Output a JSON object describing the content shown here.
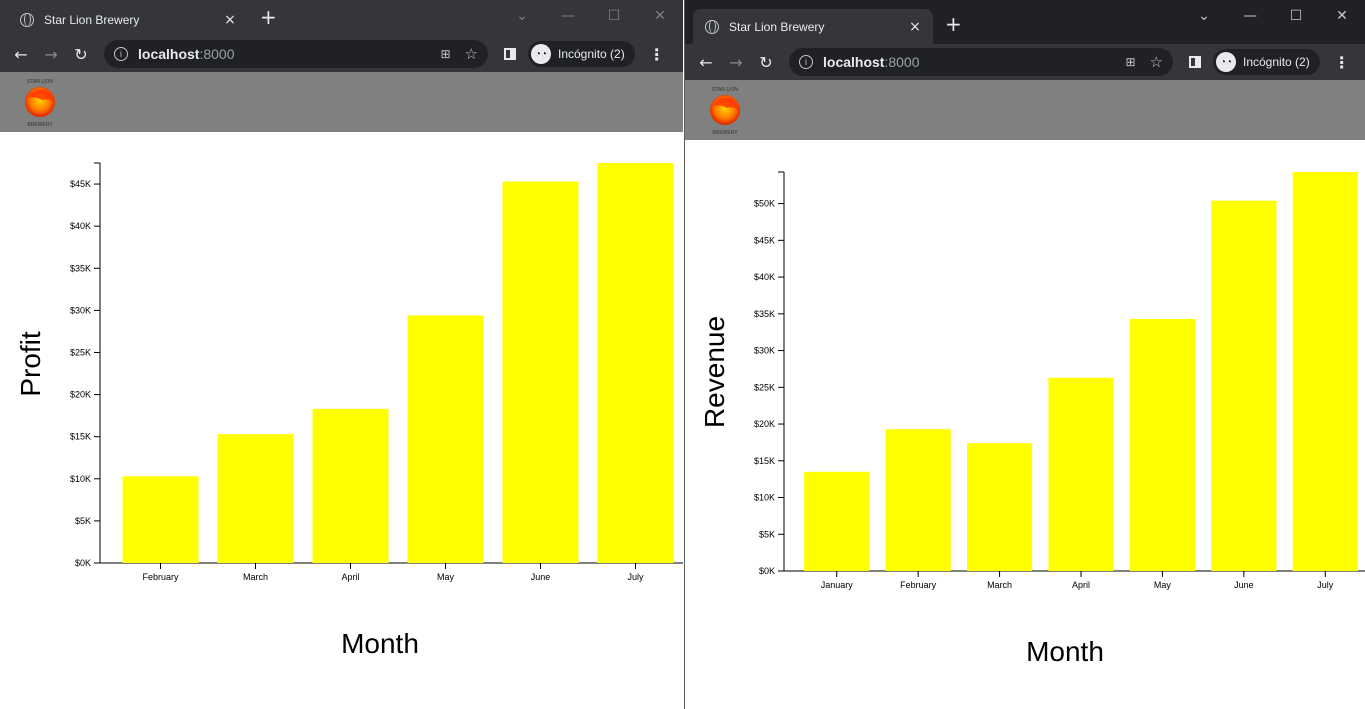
{
  "windows": [
    {
      "tab_title": "Star Lion Brewery",
      "tab_close": "×",
      "new_tab": "+",
      "url_host": "localhost",
      "url_port": ":8000",
      "incognito_label": "Incógnito (2)",
      "logo_text_top": "STAR LION",
      "logo_text_bottom": "BREWERY",
      "chart_data": {
        "type": "bar",
        "categories": [
          "February",
          "March",
          "April",
          "May",
          "June",
          "July"
        ],
        "values": [
          10300,
          15300,
          18300,
          29400,
          45300,
          47500
        ],
        "title": "",
        "xlabel": "Month",
        "ylabel": "Profit",
        "ylim": [
          0,
          47500
        ],
        "yticks": [
          0,
          5000,
          10000,
          15000,
          20000,
          25000,
          30000,
          35000,
          40000,
          45000
        ],
        "ytick_labels": [
          "$0K",
          "$5K",
          "$10K",
          "$15K",
          "$20K",
          "$25K",
          "$30K",
          "$35K",
          "$40K",
          "$45K"
        ],
        "bar_color": "#ffff00"
      }
    },
    {
      "tab_title": "Star Lion Brewery",
      "tab_close": "×",
      "new_tab": "+",
      "url_host": "localhost",
      "url_port": ":8000",
      "incognito_label": "Incógnito (2)",
      "logo_text_top": "STAR LION",
      "logo_text_bottom": "BREWERY",
      "chart_data": {
        "type": "bar",
        "categories": [
          "January",
          "February",
          "March",
          "April",
          "May",
          "June",
          "July"
        ],
        "values": [
          13500,
          19300,
          17400,
          26300,
          34300,
          50400,
          54300
        ],
        "title": "",
        "xlabel": "Month",
        "ylabel": "Revenue",
        "ylim": [
          0,
          54300
        ],
        "yticks": [
          0,
          5000,
          10000,
          15000,
          20000,
          25000,
          30000,
          35000,
          40000,
          45000,
          50000
        ],
        "ytick_labels": [
          "$0K",
          "$5K",
          "$10K",
          "$15K",
          "$20K",
          "$25K",
          "$30K",
          "$35K",
          "$40K",
          "$45K",
          "$50K"
        ],
        "bar_color": "#ffff00"
      }
    }
  ]
}
